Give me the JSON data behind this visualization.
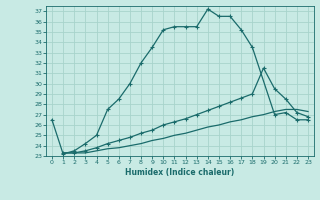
{
  "xlabel": "Humidex (Indice chaleur)",
  "xlim": [
    -0.5,
    23.5
  ],
  "ylim": [
    23,
    37.5
  ],
  "yticks": [
    23,
    24,
    25,
    26,
    27,
    28,
    29,
    30,
    31,
    32,
    33,
    34,
    35,
    36,
    37
  ],
  "xticks": [
    0,
    1,
    2,
    3,
    4,
    5,
    6,
    7,
    8,
    9,
    10,
    11,
    12,
    13,
    14,
    15,
    16,
    17,
    18,
    19,
    20,
    21,
    22,
    23
  ],
  "bg_color": "#c8eae4",
  "grid_color": "#a8d4cc",
  "line_color": "#1a6b6b",
  "line1_x": [
    0,
    1,
    2,
    3,
    4,
    5,
    6,
    7,
    8,
    9,
    10,
    11,
    12,
    13,
    14,
    15,
    16,
    17,
    18,
    20,
    21,
    22,
    23
  ],
  "line1_y": [
    26.5,
    23.2,
    23.5,
    24.2,
    25.0,
    27.5,
    28.5,
    30.0,
    32.0,
    33.5,
    35.2,
    35.5,
    35.5,
    35.5,
    37.2,
    36.5,
    36.5,
    35.2,
    33.5,
    27.0,
    27.2,
    26.5,
    26.5
  ],
  "line2_x": [
    1,
    2,
    3,
    4,
    5,
    6,
    7,
    8,
    9,
    10,
    11,
    12,
    13,
    14,
    15,
    16,
    17,
    18,
    19,
    20,
    21,
    22,
    23
  ],
  "line2_y": [
    23.3,
    23.3,
    23.5,
    23.8,
    24.2,
    24.5,
    24.8,
    25.2,
    25.5,
    26.0,
    26.3,
    26.6,
    27.0,
    27.4,
    27.8,
    28.2,
    28.6,
    29.0,
    31.5,
    29.5,
    28.5,
    27.2,
    26.8
  ],
  "line3_x": [
    1,
    2,
    3,
    4,
    5,
    6,
    7,
    8,
    9,
    10,
    11,
    12,
    13,
    14,
    15,
    16,
    17,
    18,
    19,
    20,
    21,
    22,
    23
  ],
  "line3_y": [
    23.3,
    23.3,
    23.3,
    23.5,
    23.7,
    23.8,
    24.0,
    24.2,
    24.5,
    24.7,
    25.0,
    25.2,
    25.5,
    25.8,
    26.0,
    26.3,
    26.5,
    26.8,
    27.0,
    27.3,
    27.5,
    27.5,
    27.3
  ]
}
